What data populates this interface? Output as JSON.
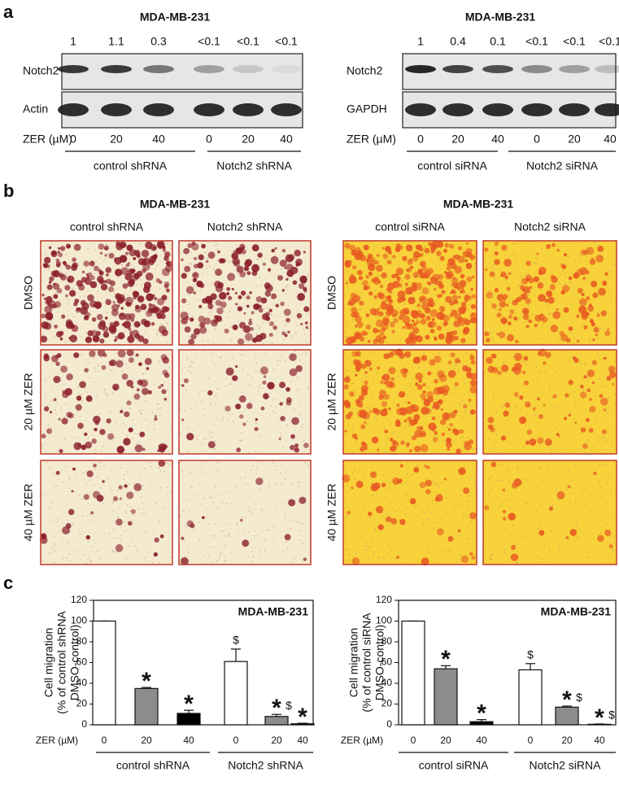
{
  "panel_labels": [
    "a",
    "b",
    "c"
  ],
  "panel_a": [
    {
      "title": "MDA-MB-231",
      "ratios": [
        "1",
        "1.1",
        "0.3",
        "<0.1",
        "<0.1",
        "<0.1"
      ],
      "rows": [
        "Notch2",
        "Actin"
      ],
      "xlabel": "ZER (µM)",
      "doses": [
        "0",
        "20",
        "40",
        "0",
        "20",
        "40"
      ],
      "groups": [
        "control shRNA",
        "Notch2 shRNA"
      ]
    },
    {
      "title": "MDA-MB-231",
      "ratios": [
        "1",
        "0.4",
        "0.1",
        "<0.1",
        "<0.1",
        "<0.1"
      ],
      "rows": [
        "Notch2",
        "GAPDH"
      ],
      "xlabel": "ZER (µM)",
      "doses": [
        "0",
        "20",
        "40",
        "0",
        "20",
        "40"
      ],
      "groups": [
        "control siRNA",
        "Notch2 siRNA"
      ]
    }
  ],
  "panel_b": [
    {
      "title": "MDA-MB-231",
      "columns": [
        "control shRNA",
        "Notch2 shRNA"
      ],
      "rows": [
        "DMSO",
        "20 µM ZER",
        "40 µM ZER"
      ]
    },
    {
      "title": "MDA-MB-231",
      "columns": [
        "control siRNA",
        "Notch2 siRNA"
      ],
      "rows": [
        "DMSO",
        "20 µM ZER",
        "40 µM ZER"
      ]
    }
  ],
  "chart_data": [
    {
      "type": "bar",
      "title": "MDA-MB-231",
      "ylabel": [
        "Cell migration",
        "(% of control shRNA",
        "DMSO-control)"
      ],
      "xlabel": "ZER (µM)",
      "ylim": [
        0,
        120
      ],
      "yticks": [
        0,
        20,
        40,
        60,
        80,
        100,
        120
      ],
      "colors": [
        "#ffffff",
        "#8c8c8c",
        "#000000"
      ],
      "groups": [
        {
          "name": "control shRNA",
          "categories": [
            "0",
            "20",
            "40"
          ],
          "values": [
            100,
            35,
            11
          ],
          "errors": [
            0,
            1,
            3
          ],
          "stars": [
            null,
            "*",
            "*"
          ],
          "dollars": [
            null,
            null,
            null
          ]
        },
        {
          "name": "Notch2 shRNA",
          "categories": [
            "0",
            "20",
            "40"
          ],
          "values": [
            61,
            8,
            1
          ],
          "errors": [
            12,
            2,
            0.5
          ],
          "stars": [
            null,
            "*",
            "*"
          ],
          "dollars": [
            "$",
            "$",
            null
          ]
        }
      ]
    },
    {
      "type": "bar",
      "title": "MDA-MB-231",
      "ylabel": [
        "Cell migration",
        "(% of control siRNA",
        "DMSO-control)"
      ],
      "xlabel": "ZER (µM)",
      "ylim": [
        0,
        120
      ],
      "yticks": [
        0,
        20,
        40,
        60,
        80,
        100,
        120
      ],
      "colors": [
        "#ffffff",
        "#8c8c8c",
        "#000000"
      ],
      "groups": [
        {
          "name": "control siRNA",
          "categories": [
            "0",
            "20",
            "40"
          ],
          "values": [
            100,
            54,
            3
          ],
          "errors": [
            0,
            3,
            2
          ],
          "stars": [
            null,
            "*",
            "*"
          ],
          "dollars": [
            null,
            null,
            null
          ]
        },
        {
          "name": "Notch2 siRNA",
          "categories": [
            "0",
            "20",
            "40"
          ],
          "values": [
            53,
            17,
            0.5
          ],
          "errors": [
            6,
            1,
            0.3
          ],
          "stars": [
            null,
            "*",
            "*"
          ],
          "dollars": [
            "$",
            "$",
            "$"
          ]
        }
      ]
    }
  ]
}
